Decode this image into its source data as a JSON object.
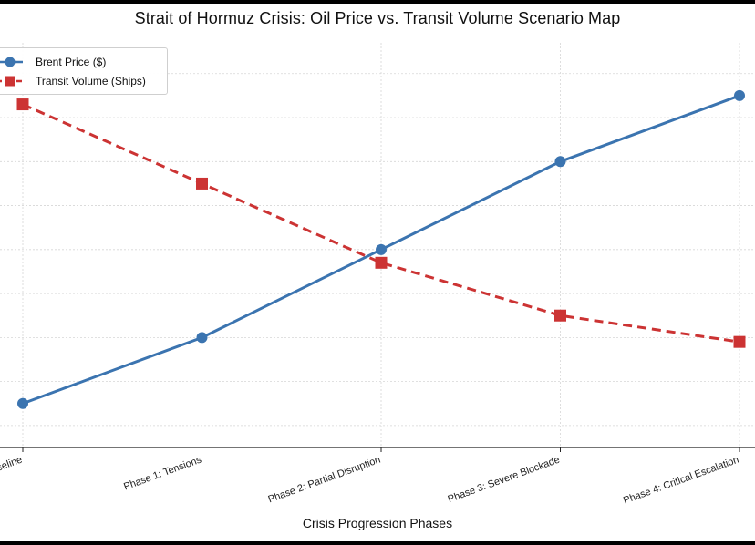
{
  "chart_data": {
    "type": "line",
    "title": "Strait of Hormuz Crisis: Oil Price vs. Transit Volume Scenario Map",
    "xlabel": "Crisis Progression Phases",
    "ylabel": "",
    "categories": [
      "Baseline",
      "Phase 1: Tensions",
      "Phase 2: Partial Disruption",
      "Phase 3: Severe Blockade",
      "Phase 4: Critical Escalation"
    ],
    "grid": true,
    "legend_position": "top-left",
    "series": [
      {
        "name": "Brent Price ($)",
        "values": [
          0.0,
          0.15,
          0.35,
          0.55,
          0.7
        ],
        "color": "#3b74b0",
        "marker": "circle",
        "line_style": "solid"
      },
      {
        "name": "Transit Volume (Ships)",
        "values": [
          0.68,
          0.5,
          0.32,
          0.2,
          0.14
        ],
        "color": "#cc3333",
        "marker": "square",
        "line_style": "dashed"
      }
    ],
    "ylim": [
      -0.1,
      0.82
    ]
  }
}
